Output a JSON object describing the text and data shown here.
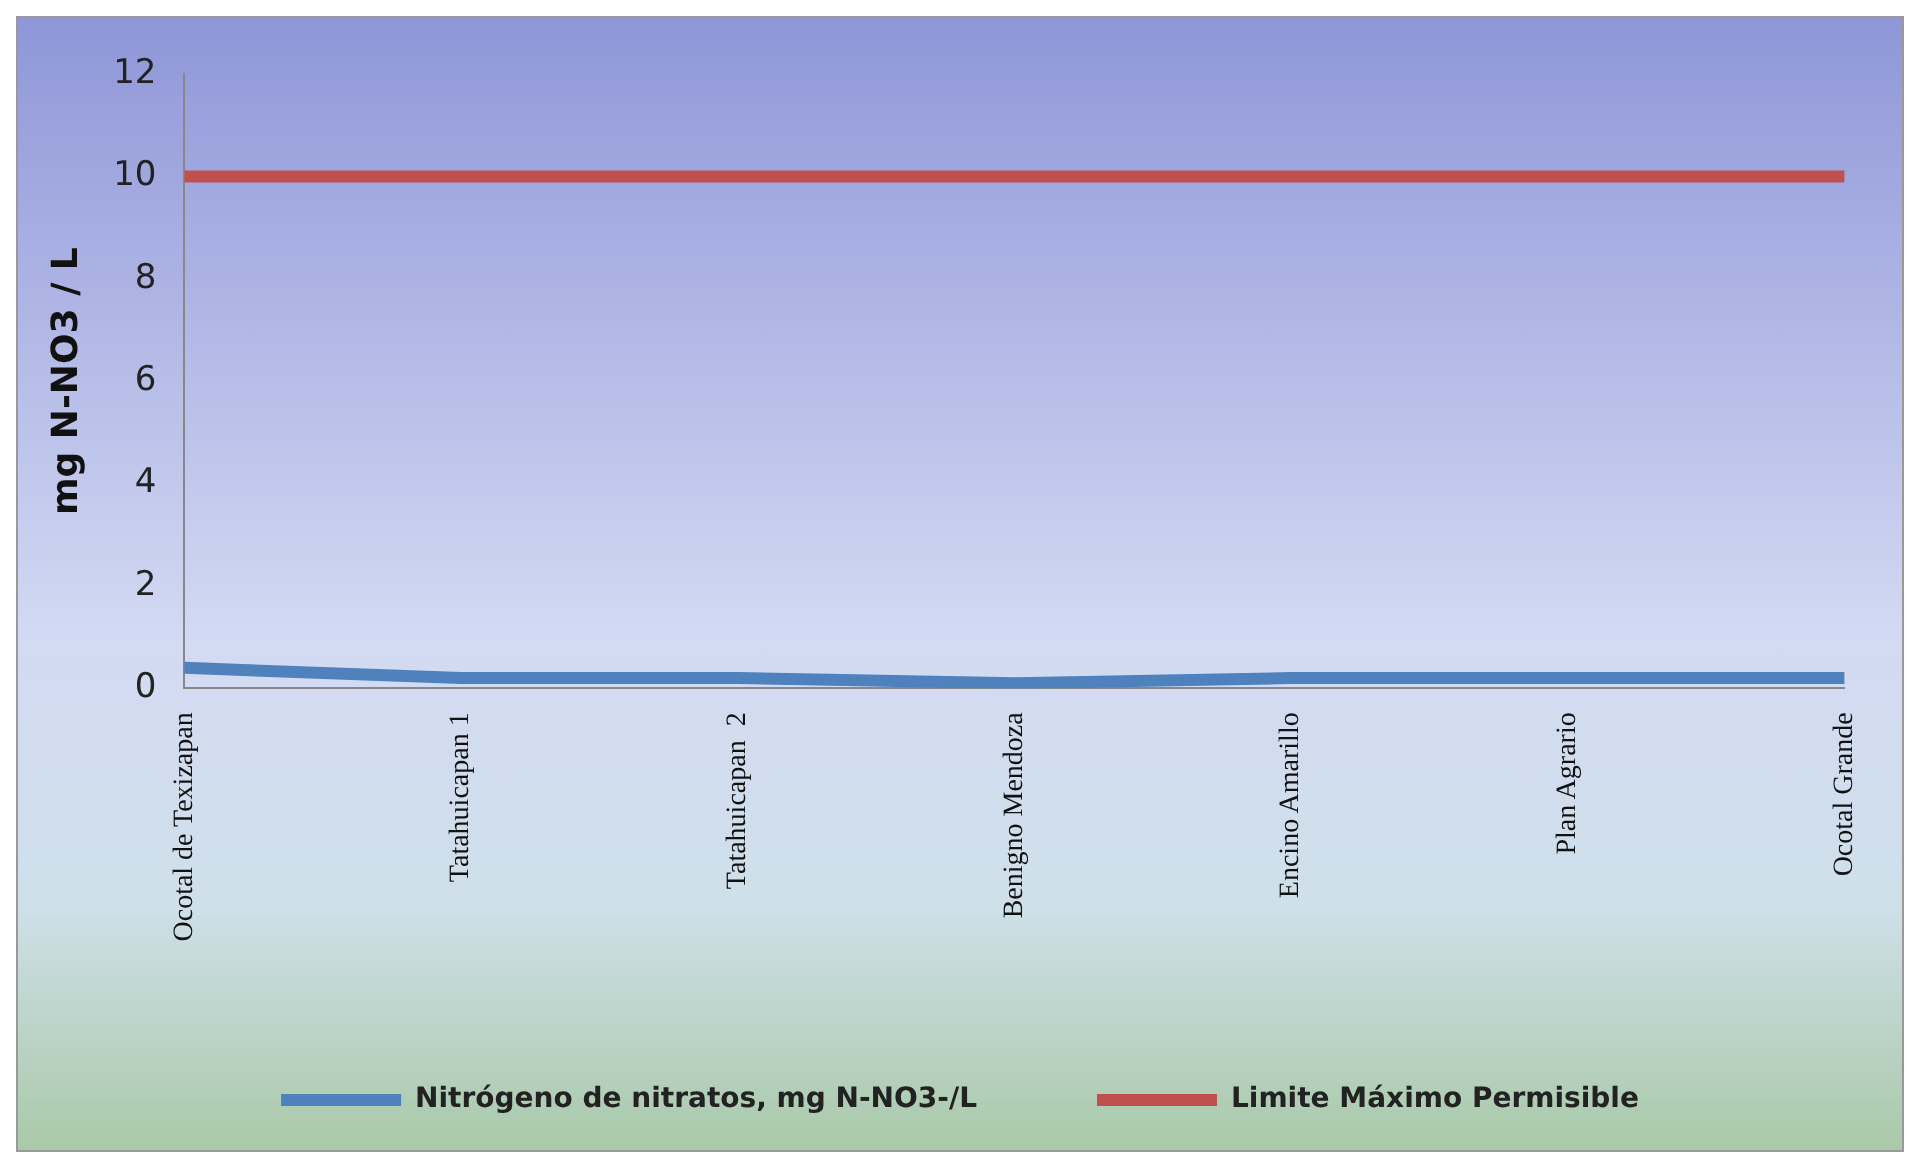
{
  "chart_data": {
    "type": "line",
    "ylabel": "mg N-NO3 / L",
    "categories": [
      "Ocotal de Texizapan",
      "Tatahuicapan 1",
      "Tatahuicapan  2",
      "Benigno Mendoza",
      "Encino Amarillo",
      "Plan Agrario",
      "Ocotal Grande"
    ],
    "series": [
      {
        "name": "Nitrógeno de nitratos, mg N-NO3-/L",
        "color": "#4f81bd",
        "values": [
          0.4,
          0.2,
          0.2,
          0.1,
          0.2,
          0.2,
          0.2
        ]
      },
      {
        "name": "Limite Máximo Permisible",
        "color": "#c0504d",
        "values": [
          10,
          10,
          10,
          10,
          10,
          10,
          10
        ]
      }
    ],
    "ylim": [
      0,
      12
    ],
    "yticks": [
      0,
      2,
      4,
      6,
      8,
      10,
      12
    ],
    "grid": false,
    "legend": "bottom",
    "marker": "none",
    "line_style": "solid"
  }
}
